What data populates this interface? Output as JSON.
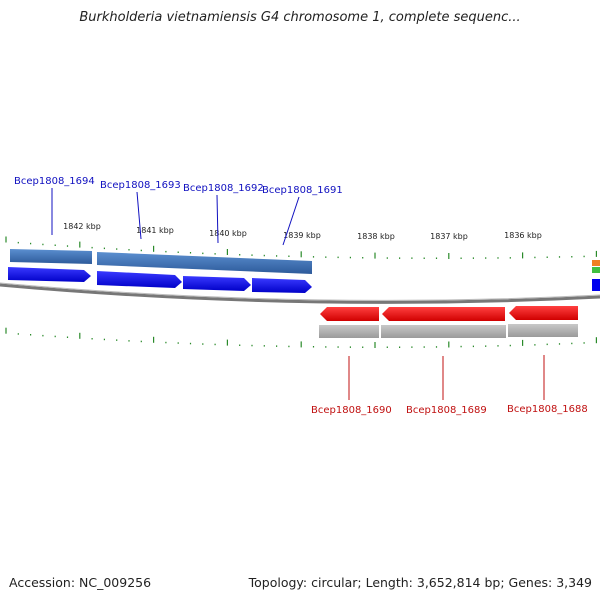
{
  "title": "Burkholderia vietnamiensis G4 chromosome 1, complete sequenc...",
  "footer": {
    "accession": "Accession: NC_009256",
    "summary": "Topology: circular; Length: 3,652,814 bp; Genes: 3,349"
  },
  "kbp_labels": [
    "1842 kbp",
    "1841 kbp",
    "1840 kbp",
    "1839 kbp",
    "1838 kbp",
    "1837 kbp",
    "1836 kbp"
  ],
  "forward_genes": [
    "Bcep1808_1694",
    "Bcep1808_1693",
    "Bcep1808_1692",
    "Bcep1808_1691"
  ],
  "reverse_genes": [
    "Bcep1808_1690",
    "Bcep1808_1689",
    "Bcep1808_1688"
  ],
  "colors": {
    "forward_label": "#1010c0",
    "reverse_label": "#c01010",
    "forward_gene": "#0000ee",
    "forward_cds": "#4a78b0",
    "reverse_gene": "#ee0000",
    "reverse_cds": "#aaaaaa",
    "tick": "#2a8a2a",
    "backbone": "#7a7a7a"
  }
}
